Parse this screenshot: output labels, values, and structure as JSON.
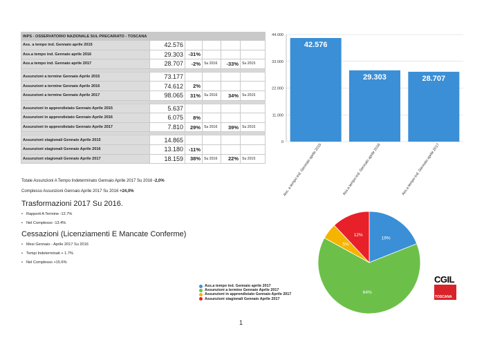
{
  "table": {
    "title": "INPS - OSSERVATORIO NAZIONALE SUL PRECARIATO - TOSCANA",
    "groups": [
      {
        "rows": [
          {
            "label": "Ass. a tempo ind. Gennaio aprile 2015",
            "value": "42.576"
          },
          {
            "label": "Ass.a tempo ind. Gennaio aprile 2016",
            "value": "29.303",
            "pct1": "-31%"
          },
          {
            "label": "Ass.a tempo ind. Gennaio aprile 2017",
            "value": "28.707",
            "pct1": "-2%",
            "su1": "Su 2016",
            "pct2": "-33%",
            "su2": "Su 2015"
          }
        ]
      },
      {
        "rows": [
          {
            "label": "Assunzioni a termine Gennaio Aprile 2015",
            "value": "73.177"
          },
          {
            "label": "Assunzioni a termine Gennaio Aprile 2016",
            "value": "74.612",
            "pct1": "2%"
          },
          {
            "label": "Assunzioni a termine Gennaio Aprile 2017",
            "value": "98.065",
            "pct1": "31%",
            "su1": "Su 2016",
            "pct2": "34%",
            "su2": "Su 2015"
          }
        ]
      },
      {
        "rows": [
          {
            "label": "Assunzioni in apprendistato Gennaio Aprile 2015",
            "value": "5.637"
          },
          {
            "label": "Assunzioni in apprendistato Gennaio Aprile 2016",
            "value": "6.075",
            "pct1": "8%"
          },
          {
            "label": "Assunzioni in apprendistato Gennaio Aprile 2017",
            "value": "7.810",
            "pct1": "29%",
            "su1": "Su 2016",
            "pct2": "39%",
            "su2": "Su 2015"
          }
        ]
      },
      {
        "rows": [
          {
            "label": "Assunzioni stagionali Gennaio Aprile 2015",
            "value": "14.865"
          },
          {
            "label": "Assunzioni stagionali Gennaio Aprile 2016",
            "value": "13.180",
            "pct1": "-11%"
          },
          {
            "label": "Assunzioni stagionali Gennaio Aprile 2017",
            "value": "18.159",
            "pct1": "38%",
            "su1": "Su 2016",
            "pct2": "22%",
            "su2": "Su 2015"
          }
        ]
      }
    ]
  },
  "totals": {
    "line1_prefix": "Totale Assunzioni A Tempo Indeterminato Gennaio Aprile 2017 Su 2016 ",
    "line1_value": "-2,0%",
    "line2_prefix": "Complesso Assunzioni Gennaio Aprile 2017 Su 2016 ",
    "line2_value": "+24,0%"
  },
  "trasformazioni": {
    "heading": "Trasformazioni 2017 Su 2016.",
    "bullets": [
      "Rapporti A Termine -12.7%",
      "Nel Complesso -13.4%"
    ]
  },
  "cessazioni": {
    "heading": "Cessazioni (Licenziamenti E Mancate Conferme)",
    "bullets": [
      "Mesi Gennaio - Aprile 2017 Su 2016",
      "Tempi Indeterminati + 1.7%",
      "Nel Complesso +15.6%"
    ]
  },
  "chart_data": [
    {
      "type": "bar",
      "categories": [
        "Ass. a tempo ind. Gennaio aprile 2015",
        "Ass.a tempo ind. Gennaio aprile 2016",
        "Ass.a tempo ind. Gennaio aprile 2017"
      ],
      "values": [
        42576,
        29303,
        28707
      ],
      "value_labels": [
        "42.576",
        "29.303",
        "28.707"
      ],
      "ylim": [
        0,
        44000
      ],
      "yticks": [
        0,
        11000,
        22000,
        33000,
        44000
      ],
      "ytick_labels": [
        "0",
        "11.000",
        "22.000",
        "33.000",
        "44.000"
      ],
      "color": "#3a8fd6",
      "grid": true
    },
    {
      "type": "pie",
      "slices": [
        {
          "name": "Ass.a tempo ind. Gennaio aprile 2017",
          "value": 19,
          "label": "19%",
          "color": "#3a8fd6"
        },
        {
          "name": "Assunzioni a termine Gennaio Aprile 2017",
          "value": 64,
          "label": "64%",
          "color": "#6cc04a"
        },
        {
          "name": "Assunzioni in apprendistato Gennaio Aprile 2017",
          "value": 5,
          "label": "5%",
          "color": "#f5b400"
        },
        {
          "name": "Assunzioni stagionali Gennaio Aprile 2017",
          "value": 12,
          "label": "12%",
          "color": "#e8202a"
        }
      ],
      "legend_position": "left"
    }
  ],
  "logo": {
    "name": "CGIL",
    "region": "TOSCANA"
  },
  "page_number": "1"
}
